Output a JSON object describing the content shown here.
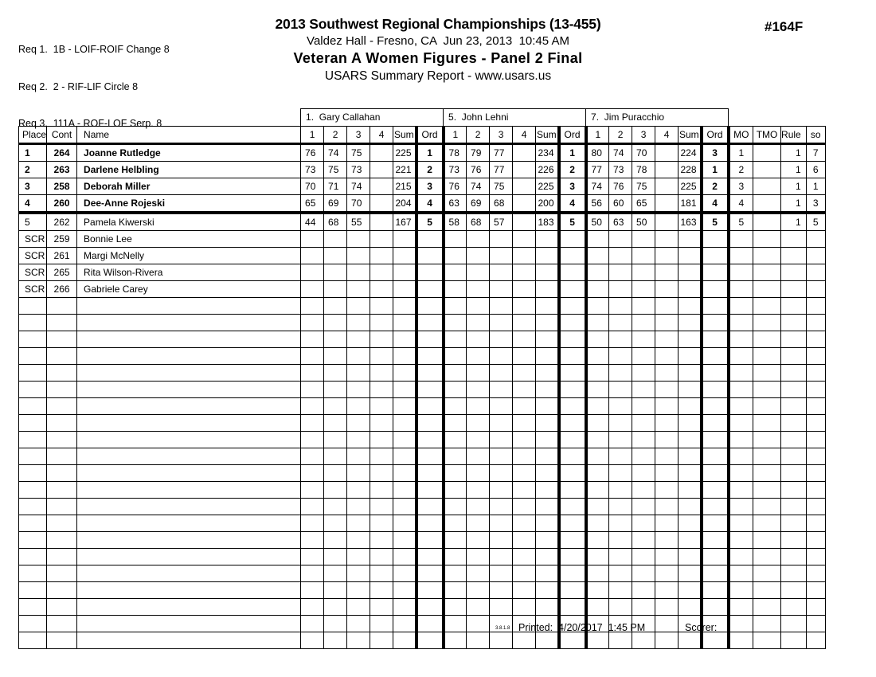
{
  "header": {
    "requirements": [
      "Req 1.  1B - LOIF-ROIF Change 8",
      "Req 2.  2 - RIF-LIF Circle 8",
      "Req 3.  111A - ROF-LOF Serp. 8"
    ],
    "title": "2013 Southwest Regional Championships (13-455)",
    "venue_date_line": "Valdez Hall - Fresno, CA  Jun 23, 2013  10:45 AM",
    "event_title": "Veteran A Women Figures - Panel 2 Final",
    "report_type": "USARS Summary Report - www.usars.us",
    "doc_number": "#164F"
  },
  "table": {
    "left_headers": [
      "Place",
      "Cont",
      "Name"
    ],
    "judge_score_headers": [
      "1",
      "2",
      "3",
      "4",
      "Sum",
      "Ord"
    ],
    "right_headers": [
      "MO",
      "TMO",
      "Rule",
      "so"
    ],
    "judges": [
      "1.  Gary Callahan",
      "5.  John Lehni",
      "7.  Jim Puracchio"
    ],
    "rows": [
      {
        "place": "1",
        "cont": "264",
        "name": "Joanne Rutledge",
        "bold": true,
        "separator_below": false,
        "judges": [
          [
            "76",
            "74",
            "75",
            "",
            "225",
            "1"
          ],
          [
            "78",
            "79",
            "77",
            "",
            "234",
            "1"
          ],
          [
            "80",
            "74",
            "70",
            "",
            "224",
            "3"
          ]
        ],
        "mo": "1",
        "tmo": "",
        "rule": "1",
        "so": "7"
      },
      {
        "place": "2",
        "cont": "263",
        "name": "Darlene Helbling",
        "bold": true,
        "separator_below": false,
        "judges": [
          [
            "73",
            "75",
            "73",
            "",
            "221",
            "2"
          ],
          [
            "73",
            "76",
            "77",
            "",
            "226",
            "2"
          ],
          [
            "77",
            "73",
            "78",
            "",
            "228",
            "1"
          ]
        ],
        "mo": "2",
        "tmo": "",
        "rule": "1",
        "so": "6"
      },
      {
        "place": "3",
        "cont": "258",
        "name": "Deborah Miller",
        "bold": true,
        "separator_below": false,
        "judges": [
          [
            "70",
            "71",
            "74",
            "",
            "215",
            "3"
          ],
          [
            "76",
            "74",
            "75",
            "",
            "225",
            "3"
          ],
          [
            "74",
            "76",
            "75",
            "",
            "225",
            "2"
          ]
        ],
        "mo": "3",
        "tmo": "",
        "rule": "1",
        "so": "1"
      },
      {
        "place": "4",
        "cont": "260",
        "name": "Dee-Anne Rojeski",
        "bold": true,
        "separator_below": true,
        "judges": [
          [
            "65",
            "69",
            "70",
            "",
            "204",
            "4"
          ],
          [
            "63",
            "69",
            "68",
            "",
            "200",
            "4"
          ],
          [
            "56",
            "60",
            "65",
            "",
            "181",
            "4"
          ]
        ],
        "mo": "4",
        "tmo": "",
        "rule": "1",
        "so": "3"
      },
      {
        "place": "5",
        "cont": "262",
        "name": "Pamela Kiwerski",
        "bold": false,
        "separator_below": false,
        "judges": [
          [
            "44",
            "68",
            "55",
            "",
            "167",
            "5"
          ],
          [
            "58",
            "68",
            "57",
            "",
            "183",
            "5"
          ],
          [
            "50",
            "63",
            "50",
            "",
            "163",
            "5"
          ]
        ],
        "mo": "5",
        "tmo": "",
        "rule": "1",
        "so": "5"
      },
      {
        "place": "SCR",
        "cont": "259",
        "name": "Bonnie Lee",
        "bold": false,
        "separator_below": false,
        "judges": [
          [
            "",
            "",
            "",
            "",
            "",
            ""
          ],
          [
            "",
            "",
            "",
            "",
            "",
            ""
          ],
          [
            "",
            "",
            "",
            "",
            "",
            ""
          ]
        ],
        "mo": "",
        "tmo": "",
        "rule": "",
        "so": ""
      },
      {
        "place": "SCR",
        "cont": "261",
        "name": "Margi McNelly",
        "bold": false,
        "separator_below": false,
        "judges": [
          [
            "",
            "",
            "",
            "",
            "",
            ""
          ],
          [
            "",
            "",
            "",
            "",
            "",
            ""
          ],
          [
            "",
            "",
            "",
            "",
            "",
            ""
          ]
        ],
        "mo": "",
        "tmo": "",
        "rule": "",
        "so": ""
      },
      {
        "place": "SCR",
        "cont": "265",
        "name": "Rita Wilson-Rivera",
        "bold": false,
        "separator_below": false,
        "judges": [
          [
            "",
            "",
            "",
            "",
            "",
            ""
          ],
          [
            "",
            "",
            "",
            "",
            "",
            ""
          ],
          [
            "",
            "",
            "",
            "",
            "",
            ""
          ]
        ],
        "mo": "",
        "tmo": "",
        "rule": "",
        "so": ""
      },
      {
        "place": "SCR",
        "cont": "266",
        "name": "Gabriele Carey",
        "bold": false,
        "separator_below": false,
        "judges": [
          [
            "",
            "",
            "",
            "",
            "",
            ""
          ],
          [
            "",
            "",
            "",
            "",
            "",
            ""
          ],
          [
            "",
            "",
            "",
            "",
            "",
            ""
          ]
        ],
        "mo": "",
        "tmo": "",
        "rule": "",
        "so": ""
      }
    ],
    "empty_rows": 21
  },
  "footer": {
    "version": "3.8.1.8",
    "printed": "Printed:  4/20/2017  1:45 PM",
    "scorer": "Scorer:"
  }
}
